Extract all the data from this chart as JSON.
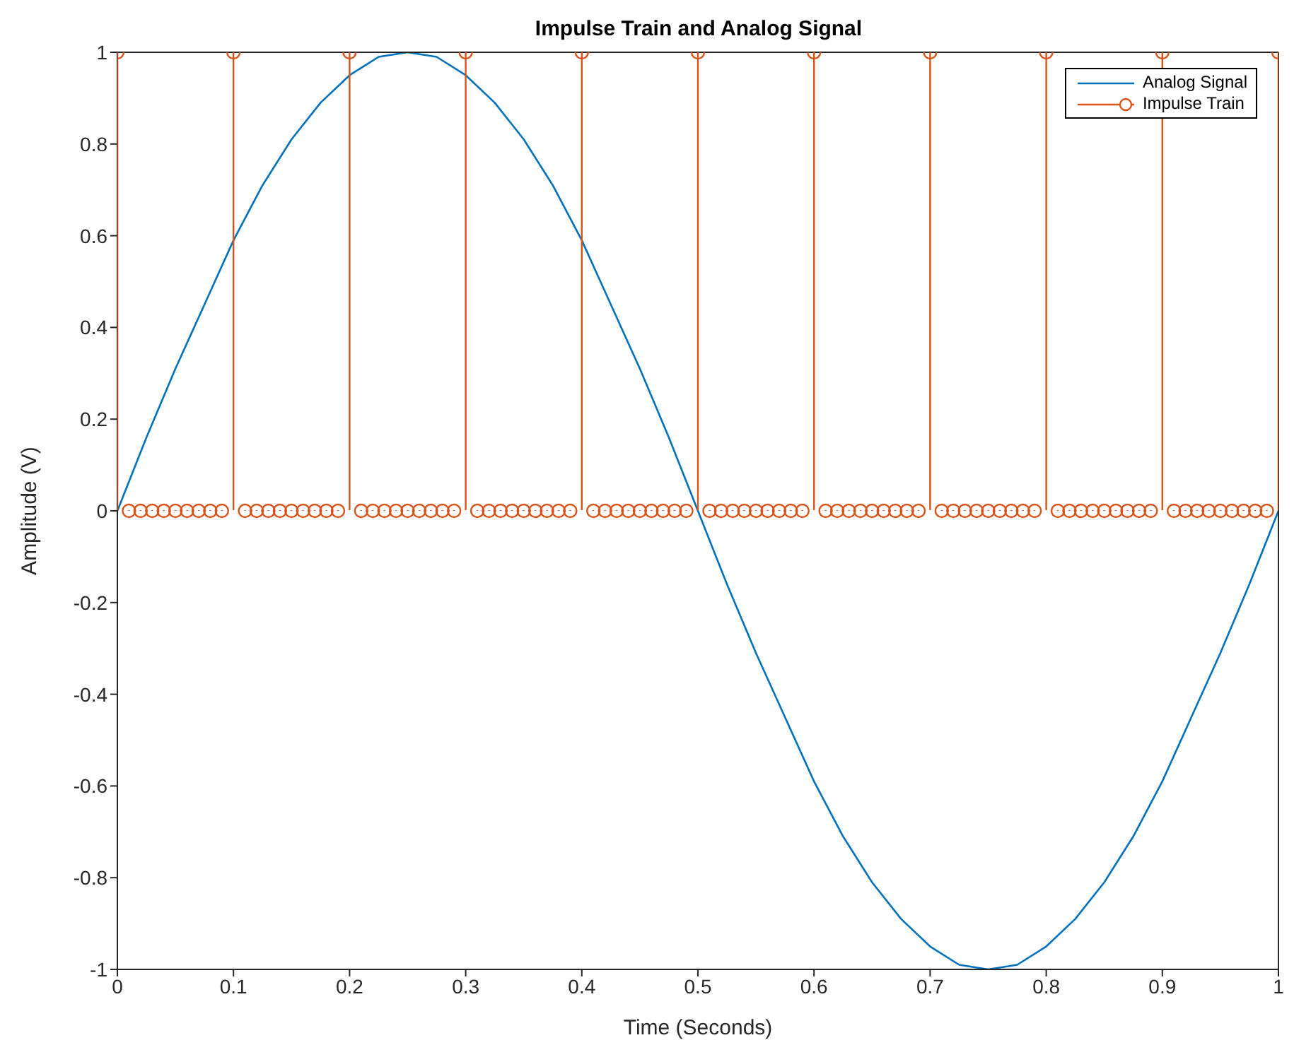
{
  "chart_data": {
    "type": "line",
    "title": "Impulse Train and Analog Signal",
    "xlabel": "Time (Seconds)",
    "ylabel": "Amplitude (V)",
    "xlim": [
      0,
      1
    ],
    "xticks": [
      0,
      0.1,
      0.2,
      0.3,
      0.4,
      0.5,
      0.6,
      0.7,
      0.8,
      0.9,
      1
    ],
    "ylim": [
      -1,
      1
    ],
    "yticks": [
      -1,
      -0.8,
      -0.6,
      -0.4,
      -0.2,
      0,
      0.2,
      0.4,
      0.6,
      0.8,
      1
    ],
    "legend": "top right",
    "series": [
      {
        "name": "Analog Signal",
        "color": "#0072bd",
        "marker": "none",
        "x": [
          0,
          0.025,
          0.05,
          0.075,
          0.1,
          0.125,
          0.15,
          0.175,
          0.2,
          0.225,
          0.25,
          0.275,
          0.3,
          0.325,
          0.35,
          0.375,
          0.4,
          0.425,
          0.45,
          0.475,
          0.5,
          0.525,
          0.55,
          0.575,
          0.6,
          0.625,
          0.65,
          0.675,
          0.7,
          0.725,
          0.75,
          0.775,
          0.8,
          0.825,
          0.85,
          0.875,
          0.9,
          0.925,
          0.95,
          0.975,
          1
        ],
        "values": [
          0,
          0.16,
          0.31,
          0.45,
          0.59,
          0.71,
          0.81,
          0.89,
          0.95,
          0.99,
          1,
          0.99,
          0.95,
          0.89,
          0.81,
          0.71,
          0.59,
          0.45,
          0.31,
          0.16,
          0,
          -0.16,
          -0.31,
          -0.45,
          -0.59,
          -0.71,
          -0.81,
          -0.89,
          -0.95,
          -0.99,
          -1,
          -0.99,
          -0.95,
          -0.89,
          -0.81,
          -0.71,
          -0.59,
          -0.45,
          -0.31,
          -0.16,
          0
        ]
      },
      {
        "name": "Impulse Train",
        "type": "lollipop",
        "color": "#d95319",
        "marker": "circle",
        "x": [
          0,
          0.01,
          0.02,
          0.03,
          0.04,
          0.05,
          0.06,
          0.07,
          0.08,
          0.09,
          0.1,
          0.11,
          0.12,
          0.13,
          0.14,
          0.15,
          0.16,
          0.17,
          0.18,
          0.19,
          0.2,
          0.21,
          0.22,
          0.23,
          0.24,
          0.25,
          0.26,
          0.27,
          0.28,
          0.29,
          0.3,
          0.31,
          0.32,
          0.33,
          0.34,
          0.35,
          0.36,
          0.37,
          0.38,
          0.39,
          0.4,
          0.41,
          0.42,
          0.43,
          0.44,
          0.45,
          0.46,
          0.47,
          0.48,
          0.49,
          0.5,
          0.51,
          0.52,
          0.53,
          0.54,
          0.55,
          0.56,
          0.57,
          0.58,
          0.59,
          0.6,
          0.61,
          0.62,
          0.63,
          0.64,
          0.65,
          0.66,
          0.67,
          0.68,
          0.69,
          0.7,
          0.71,
          0.72,
          0.73,
          0.74,
          0.75,
          0.76,
          0.77,
          0.78,
          0.79,
          0.8,
          0.81,
          0.82,
          0.83,
          0.84,
          0.85,
          0.86,
          0.87,
          0.88,
          0.89,
          0.9,
          0.91,
          0.92,
          0.93,
          0.94,
          0.95,
          0.96,
          0.97,
          0.98,
          0.99,
          1
        ],
        "values": [
          1,
          0,
          0,
          0,
          0,
          0,
          0,
          0,
          0,
          0,
          1,
          0,
          0,
          0,
          0,
          0,
          0,
          0,
          0,
          0,
          1,
          0,
          0,
          0,
          0,
          0,
          0,
          0,
          0,
          0,
          1,
          0,
          0,
          0,
          0,
          0,
          0,
          0,
          0,
          0,
          1,
          0,
          0,
          0,
          0,
          0,
          0,
          0,
          0,
          0,
          1,
          0,
          0,
          0,
          0,
          0,
          0,
          0,
          0,
          0,
          1,
          0,
          0,
          0,
          0,
          0,
          0,
          0,
          0,
          0,
          1,
          0,
          0,
          0,
          0,
          0,
          0,
          0,
          0,
          0,
          1,
          0,
          0,
          0,
          0,
          0,
          0,
          0,
          0,
          0,
          1,
          0,
          0,
          0,
          0,
          0,
          0,
          0,
          0,
          0,
          1
        ]
      }
    ]
  }
}
